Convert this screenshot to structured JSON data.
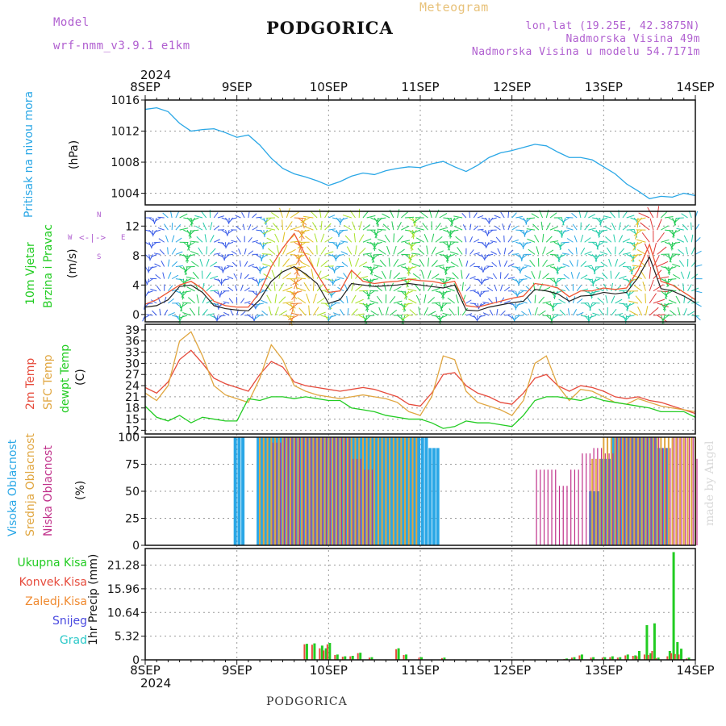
{
  "header": {
    "model_label": "Model",
    "model_name": "wrf-nmm_v3.9.1 e1km",
    "title": "PODGORICA",
    "meteogram": "Meteogram",
    "lonlat": "lon,lat (19.25E, 42.3875N)",
    "altitude": "Nadmorska Visina 49m",
    "model_altitude": "Nadmorska Visina u modelu 54.7171m",
    "footer": "PODGORICA",
    "watermark": "made by Angel"
  },
  "colors": {
    "pressure": "#2aa7e6",
    "wind_speed": "#222222",
    "gust": "#ee5533",
    "temp2m": "#e64b3c",
    "sfc_temp": "#e0a640",
    "dewpt": "#22cc22",
    "cloud_high": "#2aa7e6",
    "cloud_mid": "#e0a640",
    "cloud_low": "#c0308a",
    "precip_total": "#22cc22",
    "precip_conv": "#e64b3c"
  },
  "time_axis": {
    "year": "2024",
    "day_labels": [
      "8SEP",
      "9SEP",
      "10SEP",
      "11SEP",
      "12SEP",
      "13SEP",
      "14SEP"
    ],
    "hours_span": 144
  },
  "panels": {
    "pressure": {
      "title": "Pritisak na nivou mora",
      "unit": "(hPa)",
      "ticks": [
        "1004",
        "1008",
        "1012",
        "1016"
      ]
    },
    "wind": {
      "title1": "10m Vjetar",
      "title2": "Brzina i Pravac",
      "unit": "(m/s)",
      "ticks": [
        "0",
        "4",
        "8",
        "12"
      ],
      "compass_n": "N",
      "compass_s": "S",
      "compass_w": "W",
      "compass_e": "E"
    },
    "temp": {
      "title1": "2m Temp",
      "title2": "SFC Temp",
      "title3": "dewpt Temp",
      "unit": "(C)",
      "ticks": [
        "12",
        "15",
        "18",
        "21",
        "24",
        "27",
        "30",
        "33",
        "36",
        "39"
      ]
    },
    "cloud": {
      "title1": "Visoka Oblacnost",
      "title2": "Srednja Oblacnost",
      "title3": "Niska Oblacnost",
      "unit": "(%)",
      "ticks": [
        "0",
        "25",
        "50",
        "75",
        "100"
      ]
    },
    "precip": {
      "unit": "1hr Precip (mm)",
      "ticks": [
        "0",
        "5.32",
        "10.64",
        "15.96",
        "21.28"
      ],
      "legend": [
        "Ukupna Kisa",
        "Konvek.Kisa",
        "Zaledj.Kisa",
        "Snijeg",
        "Grad"
      ]
    }
  },
  "chart_data": [
    {
      "type": "line",
      "title": "Pritisak na nivou mora",
      "ylabel": "(hPa)",
      "ylim": [
        1002.5,
        1016
      ],
      "x_hours": [
        0,
        3,
        6,
        9,
        12,
        15,
        18,
        21,
        24,
        27,
        30,
        33,
        36,
        39,
        42,
        45,
        48,
        51,
        54,
        57,
        60,
        63,
        66,
        69,
        72,
        75,
        78,
        81,
        84,
        87,
        90,
        93,
        96,
        99,
        102,
        105,
        108,
        111,
        114,
        117,
        120,
        123,
        126,
        129,
        132,
        135,
        138,
        141,
        144
      ],
      "series": [
        {
          "values": [
            1014.8,
            1015.0,
            1014.5,
            1013.0,
            1012.0,
            1012.2,
            1012.3,
            1011.8,
            1011.2,
            1011.5,
            1010.2,
            1008.5,
            1007.2,
            1006.5,
            1006.1,
            1005.6,
            1005.0,
            1005.5,
            1006.2,
            1006.6,
            1006.4,
            1006.9,
            1007.2,
            1007.4,
            1007.3,
            1007.8,
            1008.1,
            1007.4,
            1006.8,
            1007.6,
            1008.6,
            1009.2,
            1009.5,
            1009.9,
            1010.3,
            1010.1,
            1009.3,
            1008.6,
            1008.6,
            1008.3,
            1007.4,
            1006.5,
            1005.2,
            1004.3,
            1003.3,
            1003.6,
            1003.5,
            1004.0,
            1003.7
          ]
        }
      ]
    },
    {
      "type": "line",
      "title": "10m Vjetar Brzina i Pravac",
      "ylabel": "(m/s)",
      "ylim": [
        -1,
        14
      ],
      "x_hours": [
        0,
        3,
        6,
        9,
        12,
        15,
        18,
        21,
        24,
        27,
        30,
        33,
        36,
        39,
        42,
        45,
        48,
        51,
        54,
        57,
        60,
        63,
        66,
        69,
        72,
        75,
        78,
        81,
        84,
        87,
        90,
        93,
        96,
        99,
        102,
        105,
        108,
        111,
        114,
        117,
        120,
        123,
        126,
        129,
        132,
        135,
        138,
        141,
        144
      ],
      "series": [
        {
          "name": "speed",
          "values": [
            1.0,
            1.2,
            2.0,
            3.8,
            4.0,
            3.0,
            1.2,
            0.8,
            0.6,
            0.5,
            2.0,
            4.5,
            5.8,
            6.5,
            5.5,
            4.2,
            1.5,
            2.0,
            4.2,
            4.0,
            3.8,
            3.9,
            4.0,
            4.2,
            4.0,
            3.8,
            3.6,
            4.0,
            0.6,
            0.5,
            1.0,
            1.3,
            1.6,
            1.8,
            3.4,
            3.2,
            2.8,
            1.8,
            2.5,
            2.6,
            3.0,
            2.8,
            3.0,
            5.0,
            7.8,
            3.5,
            3.2,
            2.5,
            1.6
          ]
        },
        {
          "name": "gust",
          "values": [
            1.4,
            2.0,
            3.0,
            4.0,
            4.5,
            3.5,
            1.8,
            1.2,
            1.0,
            1.0,
            3.0,
            6.5,
            9.0,
            11.0,
            8.0,
            5.5,
            3.0,
            3.2,
            6.0,
            4.5,
            4.2,
            4.4,
            4.5,
            4.8,
            4.6,
            4.5,
            4.2,
            4.5,
            1.2,
            1.0,
            1.4,
            1.8,
            2.2,
            2.5,
            4.2,
            4.0,
            3.6,
            2.4,
            3.2,
            3.2,
            3.6,
            3.4,
            3.6,
            6.0,
            9.5,
            4.5,
            4.0,
            3.0,
            2.0
          ]
        }
      ]
    },
    {
      "type": "line",
      "title": "2m Temp / SFC Temp / dewpt Temp",
      "ylabel": "(C)",
      "ylim": [
        11,
        40.5
      ],
      "x_hours": [
        0,
        3,
        6,
        9,
        12,
        15,
        18,
        21,
        24,
        27,
        30,
        33,
        36,
        39,
        42,
        45,
        48,
        51,
        54,
        57,
        60,
        63,
        66,
        69,
        72,
        75,
        78,
        81,
        84,
        87,
        90,
        93,
        96,
        99,
        102,
        105,
        108,
        111,
        114,
        117,
        120,
        123,
        126,
        129,
        132,
        135,
        138,
        141,
        144
      ],
      "series": [
        {
          "name": "2m Temp",
          "values": [
            23.5,
            22.0,
            25.0,
            31.0,
            33.5,
            30.0,
            26.0,
            24.5,
            23.5,
            22.5,
            27.0,
            30.5,
            29.0,
            25.0,
            24.0,
            23.5,
            23.0,
            22.5,
            23.0,
            23.5,
            23.0,
            22.0,
            21.0,
            19.0,
            18.5,
            22.0,
            27.0,
            27.5,
            24.0,
            22.0,
            21.0,
            19.5,
            19.0,
            22.0,
            26.0,
            27.0,
            24.0,
            22.5,
            24.0,
            23.5,
            22.5,
            21.0,
            20.5,
            21.0,
            20.0,
            19.5,
            18.5,
            17.5,
            16.5
          ]
        },
        {
          "name": "SFC Temp",
          "values": [
            22.0,
            20.0,
            24.0,
            36.0,
            38.5,
            32.0,
            24.0,
            21.5,
            20.5,
            19.5,
            26.0,
            35.0,
            31.0,
            24.0,
            22.5,
            21.5,
            21.0,
            20.5,
            21.0,
            21.5,
            21.0,
            20.5,
            19.5,
            17.0,
            16.0,
            21.0,
            32.0,
            31.0,
            22.5,
            19.5,
            18.5,
            17.5,
            16.0,
            20.0,
            30.0,
            32.0,
            24.0,
            20.0,
            23.0,
            22.5,
            21.0,
            19.5,
            19.0,
            20.5,
            19.5,
            18.5,
            18.0,
            17.5,
            17.0
          ]
        },
        {
          "name": "dewpt Temp",
          "values": [
            18.5,
            15.5,
            14.5,
            16.0,
            14.0,
            15.5,
            15.0,
            14.5,
            14.5,
            20.5,
            20.0,
            21.0,
            21.0,
            20.5,
            21.0,
            20.5,
            20.0,
            20.0,
            18.0,
            17.5,
            17.0,
            16.0,
            15.5,
            15.0,
            15.0,
            14.0,
            12.5,
            13.0,
            14.5,
            14.0,
            14.0,
            13.5,
            13.0,
            16.0,
            20.0,
            21.0,
            21.0,
            20.5,
            20.0,
            21.0,
            20.0,
            19.5,
            19.0,
            18.5,
            18.0,
            17.0,
            17.0,
            17.0,
            15.5
          ]
        }
      ]
    },
    {
      "type": "bar",
      "title": "Visoka / Srednja / Niska Oblacnost",
      "ylabel": "(%)",
      "ylim": [
        0,
        100
      ],
      "x_hours": [
        0,
        3,
        6,
        9,
        12,
        15,
        18,
        21,
        24,
        27,
        30,
        33,
        36,
        39,
        42,
        45,
        48,
        51,
        54,
        57,
        60,
        63,
        66,
        69,
        72,
        75,
        78,
        81,
        84,
        87,
        90,
        93,
        96,
        99,
        102,
        105,
        108,
        111,
        114,
        117,
        120,
        123,
        126,
        129,
        132,
        135,
        138,
        141,
        144
      ],
      "series": [
        {
          "name": "Visoka Oblacnost",
          "values": [
            0,
            0,
            0,
            0,
            0,
            0,
            0,
            0,
            100,
            0,
            100,
            100,
            100,
            100,
            100,
            100,
            100,
            100,
            100,
            100,
            100,
            100,
            100,
            100,
            100,
            90,
            0,
            0,
            0,
            0,
            0,
            0,
            0,
            0,
            0,
            0,
            0,
            0,
            0,
            50,
            80,
            100,
            100,
            100,
            100,
            90,
            0,
            0,
            0
          ]
        },
        {
          "name": "Srednja Oblacnost",
          "values": [
            0,
            0,
            0,
            0,
            0,
            0,
            0,
            0,
            0,
            0,
            100,
            100,
            100,
            100,
            100,
            100,
            100,
            100,
            100,
            100,
            100,
            100,
            100,
            100,
            0,
            0,
            0,
            0,
            0,
            0,
            0,
            0,
            0,
            0,
            0,
            0,
            0,
            0,
            0,
            80,
            100,
            100,
            100,
            100,
            100,
            100,
            100,
            100,
            100
          ]
        },
        {
          "name": "Niska Oblacnost",
          "values": [
            0,
            0,
            0,
            0,
            0,
            0,
            0,
            0,
            0,
            0,
            0,
            95,
            100,
            100,
            100,
            100,
            100,
            100,
            80,
            70,
            0,
            0,
            0,
            0,
            0,
            0,
            0,
            0,
            0,
            0,
            0,
            0,
            0,
            0,
            70,
            70,
            55,
            70,
            85,
            90,
            85,
            100,
            100,
            100,
            100,
            90,
            100,
            100,
            80
          ]
        }
      ]
    },
    {
      "type": "bar",
      "title": "1hr Precip",
      "ylabel": "1hr Precip (mm)",
      "ylim": [
        0,
        25
      ],
      "x_hours": [
        42,
        44,
        46,
        47,
        48,
        50,
        52,
        54,
        56,
        59,
        66,
        68,
        72,
        78,
        110,
        112,
        114,
        117,
        120,
        122,
        124,
        126,
        128,
        129,
        131,
        132,
        133,
        134,
        137,
        138,
        139,
        140,
        142
      ],
      "series": [
        {
          "name": "Ukupna Kisa",
          "values": [
            3.6,
            3.7,
            3.2,
            2.6,
            3.8,
            1.2,
            0.8,
            0.9,
            1.6,
            0.6,
            2.6,
            1.2,
            0.6,
            0.5,
            0.3,
            0.6,
            1.2,
            0.6,
            0.6,
            0.8,
            0.6,
            1.2,
            1.0,
            2.0,
            7.8,
            1.5,
            8.2,
            0.5,
            2.0,
            24.2,
            4.0,
            2.5,
            0.5
          ]
        },
        {
          "name": "Konvek.Kisa",
          "values": [
            3.5,
            3.4,
            2.6,
            2.1,
            3.5,
            1.1,
            0.7,
            0.8,
            1.5,
            0.5,
            2.4,
            1.1,
            0.5,
            0.4,
            0.2,
            0.5,
            1.0,
            0.5,
            0.5,
            0.6,
            0.5,
            1.0,
            0.9,
            0.8,
            1.2,
            1.1,
            2.0,
            0.4,
            0.8,
            1.5,
            1.3,
            1.2,
            0.3
          ]
        }
      ]
    }
  ]
}
